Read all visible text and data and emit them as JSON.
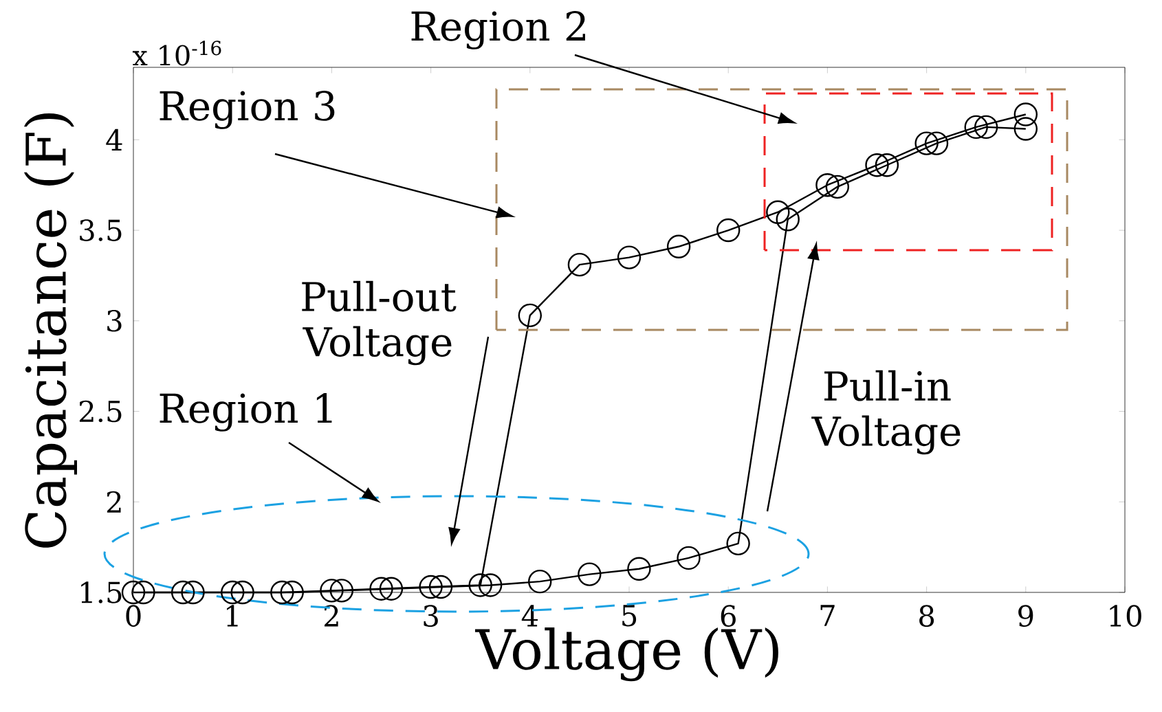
{
  "chart_data": {
    "type": "line",
    "xlabel": "Voltage (V)",
    "ylabel": "Capacitance (F)",
    "xlim": [
      0,
      10
    ],
    "ylim": [
      1.5,
      4.4
    ],
    "xticks": [
      0,
      1,
      2,
      3,
      4,
      5,
      6,
      7,
      8,
      9,
      10
    ],
    "yticks": [
      1.5,
      2,
      2.5,
      3,
      3.5,
      4
    ],
    "marker": "circle",
    "line_style": "solid",
    "series": [
      {
        "color": "#000000",
        "x": [
          0.1,
          0.6,
          1.1,
          1.6,
          2.1,
          2.6,
          3.1,
          3.6,
          4.1,
          4.6,
          5.1,
          5.6,
          6.1,
          6.6,
          7.1,
          7.6,
          8.1,
          8.6,
          9.0
        ],
        "values": [
          1.5,
          1.5,
          1.5,
          1.5,
          1.51,
          1.52,
          1.53,
          1.54,
          1.56,
          1.6,
          1.63,
          1.69,
          1.77,
          3.56,
          3.74,
          3.86,
          3.98,
          4.07,
          4.06
        ]
      },
      {
        "color": "#000000",
        "x": [
          9,
          8.5,
          8,
          7.5,
          7,
          6.5,
          6,
          5.5,
          5,
          4.5,
          4,
          3.5,
          3,
          2.5,
          2,
          1.5,
          1,
          0.5,
          0
        ],
        "values": [
          4.14,
          4.07,
          3.98,
          3.86,
          3.75,
          3.6,
          3.5,
          3.41,
          3.35,
          3.31,
          3.03,
          1.54,
          1.53,
          1.52,
          1.51,
          1.5,
          1.5,
          1.5,
          1.5
        ]
      }
    ],
    "annotations": [
      "x 10$^{-16}$",
      "Region 1",
      "Region 2",
      "Region 3",
      "Pull-out Voltage",
      "Pull-in Voltage"
    ]
  }
}
